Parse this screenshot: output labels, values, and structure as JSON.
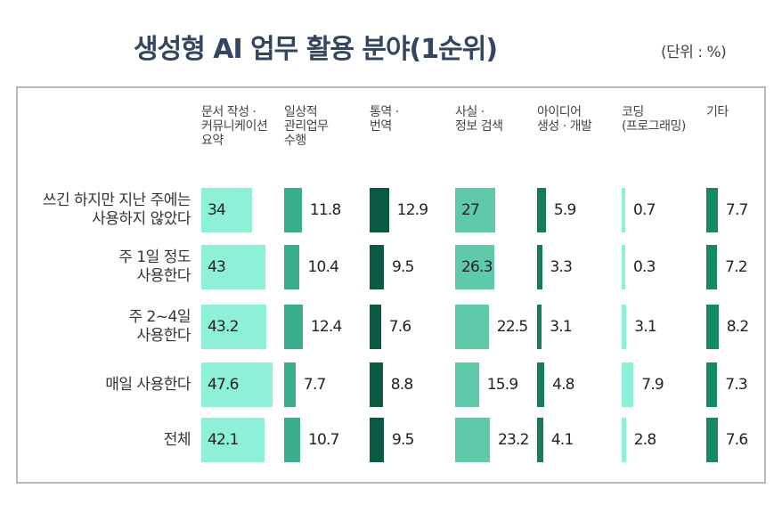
{
  "chart_data": {
    "type": "bar",
    "title": "생성형 AI 업무 활용 분야(1순위)",
    "subtitle": "(단위 : %)",
    "categories": [
      "쓰긴 하지만 지난 주에는\n사용하지 않았다",
      "주 1일 정도\n사용한다",
      "주 2~4일\n사용한다",
      "매일 사용한다",
      "전체"
    ],
    "series": [
      {
        "name": "문서 작성 ·\n커뮤니케이션\n요약",
        "color": "#8ef0d6",
        "values": [
          34,
          43,
          43.2,
          47.6,
          42.1
        ]
      },
      {
        "name": "일상적\n관리업무\n수행",
        "color": "#3aae8d",
        "values": [
          11.8,
          10.4,
          12.4,
          7.7,
          10.7
        ]
      },
      {
        "name": "통역 ·\n번역",
        "color": "#0b5a43",
        "values": [
          12.9,
          9.5,
          7.6,
          8.8,
          9.5
        ]
      },
      {
        "name": "사실 ·\n정보 검색",
        "color": "#5ecaa9",
        "values": [
          27,
          26.3,
          22.5,
          15.9,
          23.2
        ]
      },
      {
        "name": "아이디어\n생성 · 개발",
        "color": "#167c5c",
        "values": [
          5.9,
          3.3,
          3.1,
          4.8,
          4.1
        ]
      },
      {
        "name": "코딩\n(프로그래밍)",
        "color": "#8ef0d6",
        "values": [
          0.7,
          0.3,
          3.1,
          7.9,
          2.8
        ]
      },
      {
        "name": "기타",
        "color": "#138a64",
        "values": [
          7.7,
          7.2,
          8.2,
          7.3,
          7.6
        ]
      }
    ]
  }
}
